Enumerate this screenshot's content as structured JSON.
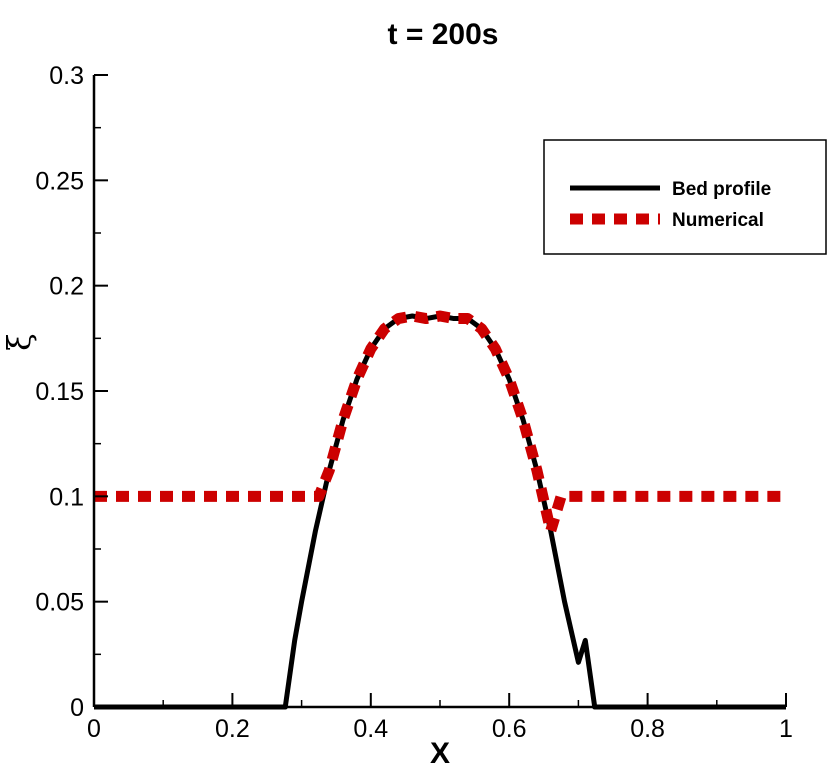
{
  "chart_data": {
    "type": "line",
    "title": "t = 200s",
    "xlabel": "X",
    "ylabel": "ξ",
    "xlim": [
      0,
      1
    ],
    "ylim": [
      0,
      0.3
    ],
    "x_ticks": [
      "0",
      "0.2",
      "0.4",
      "0.6",
      "0.8",
      "1"
    ],
    "y_ticks": [
      "0",
      "0.05",
      "0.1",
      "0.15",
      "0.2",
      "0.25",
      "0.3"
    ],
    "grid": false,
    "legend_position": "top-right",
    "series": [
      {
        "name": "Bed profile",
        "color": "#000000",
        "style": "solid",
        "x": [
          0,
          0.2764,
          0.29,
          0.3,
          0.32,
          0.34,
          0.36,
          0.38,
          0.4,
          0.42,
          0.44,
          0.46,
          0.48,
          0.5,
          0.52,
          0.54,
          0.56,
          0.58,
          0.6,
          0.62,
          0.64,
          0.66,
          0.68,
          0.7,
          0.71,
          0.7236,
          1
        ],
        "y": [
          0,
          0,
          0.0316,
          0.05,
          0.0836,
          0.1124,
          0.1364,
          0.1556,
          0.17,
          0.1796,
          0.1844,
          0.1856,
          0.1844,
          0.1856,
          0.1844,
          0.1844,
          0.1796,
          0.17,
          0.1556,
          0.1364,
          0.1124,
          0.0836,
          0.05,
          0.0212,
          0.0316,
          0,
          0
        ]
      },
      {
        "name": "Numerical",
        "color": "#cc0000",
        "style": "dashed",
        "x": [
          0,
          0.325,
          0.34,
          0.36,
          0.38,
          0.4,
          0.42,
          0.44,
          0.46,
          0.48,
          0.5,
          0.52,
          0.54,
          0.56,
          0.58,
          0.6,
          0.62,
          0.64,
          0.66,
          0.675,
          1
        ],
        "y": [
          0.1,
          0.1,
          0.1124,
          0.1364,
          0.1556,
          0.17,
          0.1796,
          0.1844,
          0.1856,
          0.1844,
          0.1856,
          0.1844,
          0.1844,
          0.1796,
          0.17,
          0.1556,
          0.1364,
          0.1124,
          0.0836,
          0.1,
          0.1
        ]
      }
    ]
  }
}
